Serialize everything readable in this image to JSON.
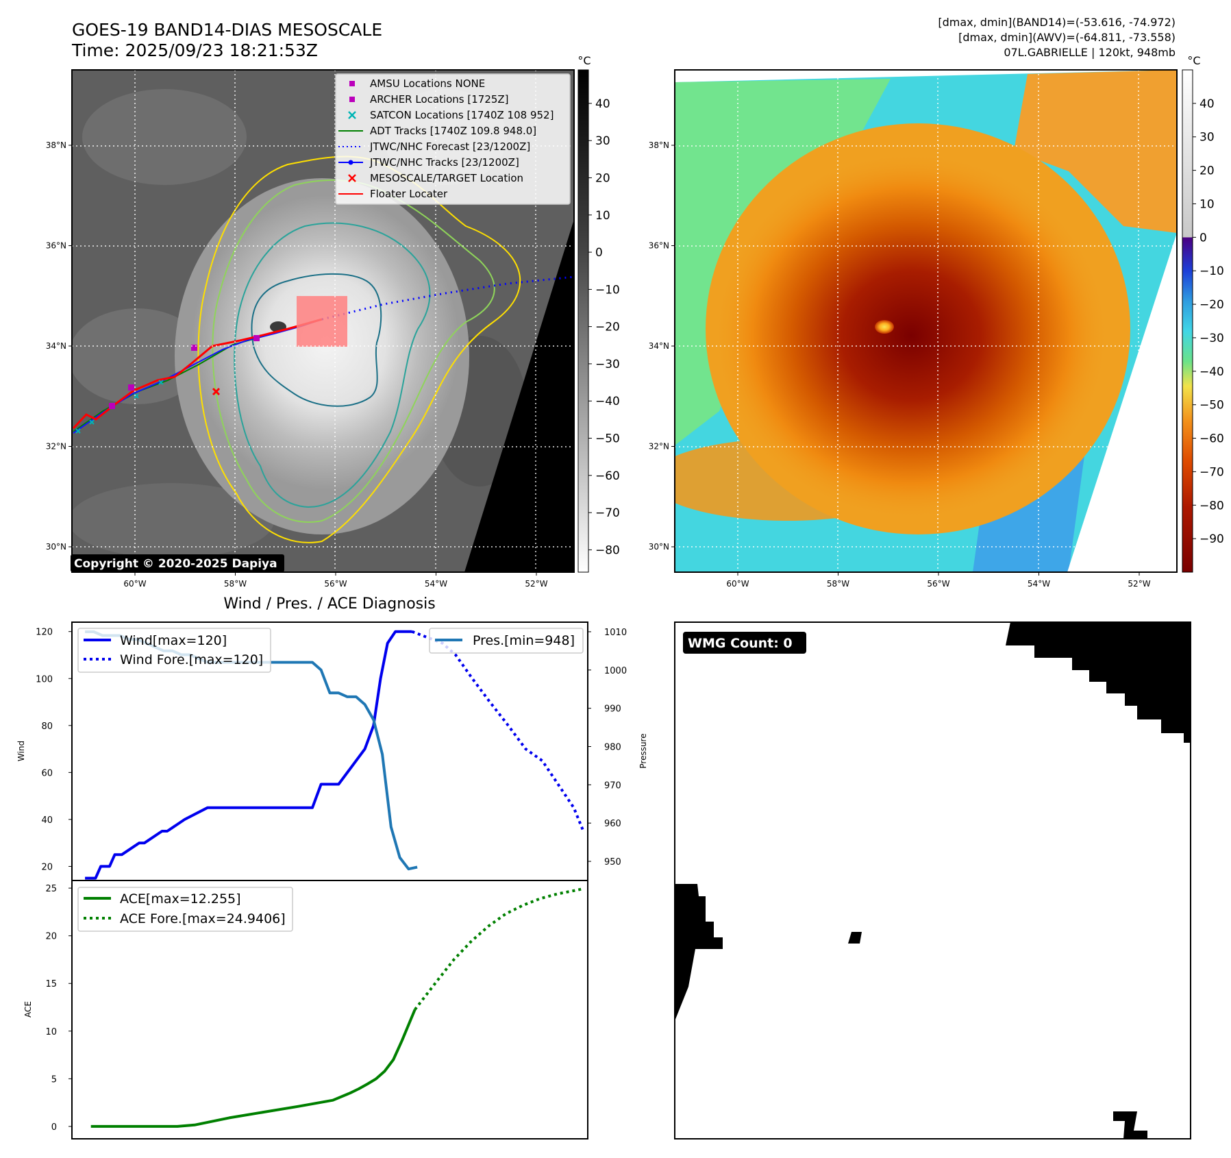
{
  "header": {
    "title": "GOES-19 BAND14-DIAS MESOSCALE",
    "time": "Time: 2025/09/23 18:21:53Z",
    "info_line1": "[dmax, dmin](BAND14)=(-53.616, -74.972)",
    "info_line2": "[dmax, dmin](AWV)=(-64.811, -73.558)",
    "info_line3": "07L.GABRIELLE | 120kt, 948mb"
  },
  "maps": {
    "lat_labels": [
      "38°N",
      "36°N",
      "34°N",
      "32°N",
      "30°N"
    ],
    "lon_labels": [
      "60°W",
      "58°W",
      "56°W",
      "54°W",
      "52°W"
    ],
    "lat_values": [
      38,
      36,
      34,
      32,
      30
    ],
    "lon_values": [
      -60,
      -58,
      -56,
      -54,
      -52
    ],
    "copyright": "Copyright © 2020-2025 Dapiya"
  },
  "ir_colorbar": {
    "unit": "°C",
    "ticks": [
      "40",
      "30",
      "20",
      "10",
      "0",
      "−10",
      "−20",
      "−30",
      "−40",
      "−50",
      "−60",
      "−70",
      "−80"
    ],
    "tick_values": [
      40,
      30,
      20,
      10,
      0,
      -10,
      -20,
      -30,
      -40,
      -50,
      -60,
      -70,
      -80
    ],
    "range": [
      49,
      -86
    ]
  },
  "wv_colorbar": {
    "unit": "°C",
    "ticks": [
      "40",
      "30",
      "20",
      "10",
      "0",
      "−10",
      "−20",
      "−30",
      "−40",
      "−50",
      "−60",
      "−70",
      "−80",
      "−90"
    ],
    "tick_values": [
      40,
      30,
      20,
      10,
      0,
      -10,
      -20,
      -30,
      -40,
      -50,
      -60,
      -70,
      -80,
      -90
    ],
    "range": [
      50,
      -100
    ]
  },
  "legend": {
    "items": [
      {
        "label": "AMSU Locations NONE",
        "color": "#bb00bb",
        "marker": "square"
      },
      {
        "label": "ARCHER Locations [1725Z]",
        "color": "#bb00bb",
        "marker": "square"
      },
      {
        "label": "SATCON Locations [1740Z 108 952]",
        "color": "#00b5b5",
        "marker": "x"
      },
      {
        "label": "ADT Tracks [1740Z 109.8 948.0]",
        "color": "#008000",
        "marker": "line"
      },
      {
        "label": "JTWC/NHC Forecast [23/1200Z]",
        "color": "#0000ff",
        "marker": "dotted"
      },
      {
        "label": "JTWC/NHC Tracks [23/1200Z]",
        "color": "#0000ff",
        "marker": "line-dot"
      },
      {
        "label": "MESOSCALE/TARGET Location",
        "color": "#ff0000",
        "marker": "x"
      },
      {
        "label": "Floater Locater",
        "color": "#ff0000",
        "marker": "line"
      }
    ]
  },
  "chart_data": [
    {
      "type": "line",
      "title": "Wind / Pres. / ACE Diagnosis",
      "ylabel": "Wind",
      "y2label": "Pressure",
      "ylim": [
        14,
        124
      ],
      "y2lim": [
        945,
        1012.5
      ],
      "yticks": [
        20,
        40,
        60,
        80,
        100,
        120
      ],
      "y2ticks": [
        950,
        960,
        970,
        980,
        990,
        1000,
        1010
      ],
      "x_index_range": [
        -1.5,
        57.5
      ],
      "legend_left": [
        "Wind[max=120]",
        "Wind Fore.[max=120]"
      ],
      "legend_right": [
        "Pres.[min=948]"
      ],
      "series": [
        {
          "name": "Wind[max=120]",
          "axis": "left",
          "style": "solid",
          "color": "#0000ee",
          "x": [
            0,
            1.2,
            1.8,
            2.8,
            3.4,
            4.2,
            6.2,
            6.8,
            8.8,
            9.4,
            11.4,
            14,
            26,
            27,
            29,
            32,
            33,
            33.8,
            34.6,
            35.5,
            36.2,
            37.4
          ],
          "values": [
            15,
            15,
            20,
            20,
            25,
            25,
            30,
            30,
            35,
            35,
            40,
            45,
            45,
            55,
            55,
            70,
            80,
            100,
            115,
            120,
            120,
            120
          ]
        },
        {
          "name": "Wind Fore.[max=120]",
          "axis": "left",
          "style": "dotted",
          "color": "#0000ee",
          "x": [
            37.4,
            40.9,
            42.4,
            44.3,
            46.3,
            48.4,
            50.4,
            52.3,
            54.1,
            55.9,
            57
          ],
          "values": [
            120,
            115,
            110,
            100,
            90,
            80,
            70,
            65,
            55,
            45,
            35
          ]
        },
        {
          "name": "Pres.[min=948]",
          "axis": "right",
          "style": "solid",
          "color": "#1f77b4",
          "x": [
            0,
            1,
            2,
            3,
            4,
            5,
            6,
            7,
            8,
            9,
            10,
            11,
            12,
            13,
            14,
            15,
            16,
            17,
            18,
            19,
            20,
            21,
            22,
            23,
            24,
            25,
            26,
            27,
            28,
            29,
            30,
            31,
            32,
            33,
            34,
            35,
            36,
            37,
            38
          ],
          "values": [
            1010,
            1010,
            1009,
            1009,
            1009,
            1008,
            1008,
            1007,
            1006,
            1005,
            1005,
            1004,
            1004,
            1003,
            1002,
            1002,
            1002,
            1002,
            1002,
            1002,
            1002,
            1002,
            1002,
            1002,
            1002,
            1002,
            1002,
            1000,
            994,
            994,
            993,
            993,
            991,
            987,
            978,
            959,
            951,
            948,
            948.5
          ]
        }
      ]
    },
    {
      "type": "line",
      "ylabel": "ACE",
      "ylim": [
        -1.3,
        25.8
      ],
      "yticks": [
        0,
        5,
        10,
        15,
        20,
        25
      ],
      "x_index_range": [
        -2.2,
        57.5
      ],
      "legend": [
        "ACE[max=12.255]",
        "ACE Fore.[max=24.9406]"
      ],
      "series": [
        {
          "name": "ACE[max=12.255]",
          "style": "solid",
          "color": "#008000",
          "x": [
            0,
            4,
            10,
            12,
            16,
            20,
            24,
            28,
            30,
            31,
            32,
            33,
            34,
            35,
            36,
            37.5
          ],
          "values": [
            0,
            0,
            0,
            0.15,
            0.9,
            1.5,
            2.1,
            2.75,
            3.5,
            3.95,
            4.45,
            5,
            5.8,
            7,
            9,
            12.26
          ]
        },
        {
          "name": "ACE Fore.[max=24.9406]",
          "style": "dotted",
          "color": "#008000",
          "x": [
            37.5,
            40,
            42,
            44,
            46,
            48,
            50,
            52,
            54,
            56,
            57
          ],
          "values": [
            12.26,
            15.2,
            17.5,
            19.4,
            21,
            22.3,
            23.2,
            23.9,
            24.4,
            24.75,
            24.94
          ]
        }
      ]
    }
  ],
  "wmg": {
    "label": "WMG Count: 0"
  }
}
